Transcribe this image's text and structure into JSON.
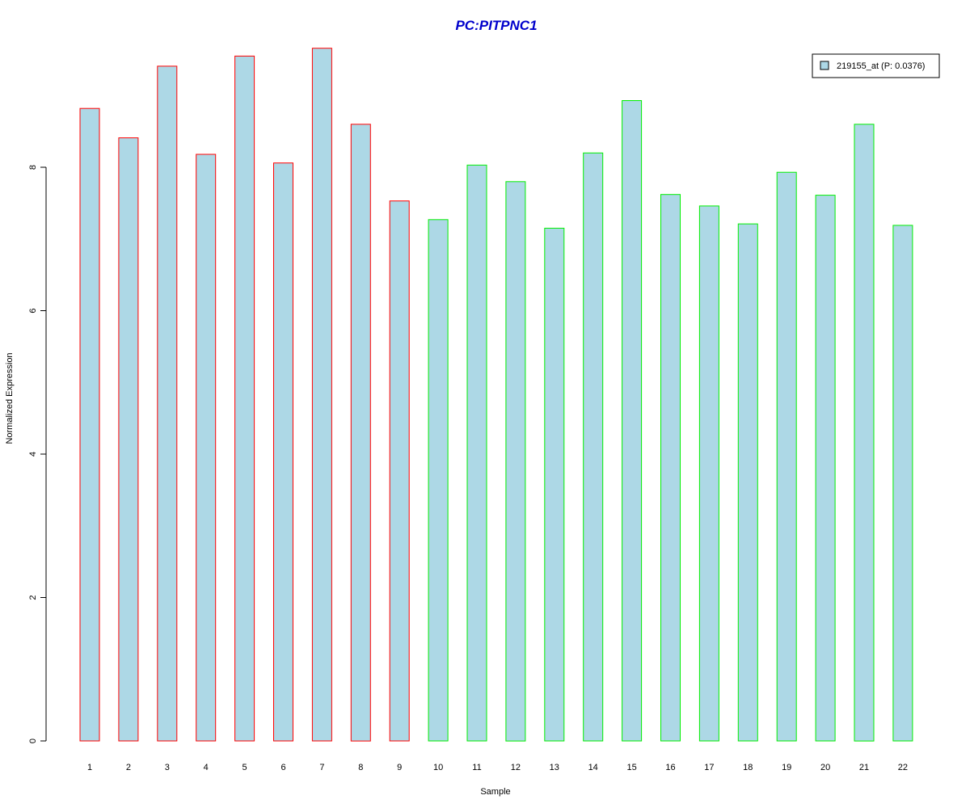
{
  "chart_data": {
    "type": "bar",
    "title": "PC:PITPNC1",
    "xlabel": "Sample",
    "ylabel": "Normalized Expression",
    "categories": [
      "1",
      "2",
      "3",
      "4",
      "5",
      "6",
      "7",
      "8",
      "9",
      "10",
      "11",
      "12",
      "13",
      "14",
      "15",
      "16",
      "17",
      "18",
      "19",
      "20",
      "21",
      "22"
    ],
    "series": [
      {
        "name": "219155_at (P: 0.0376)",
        "values": [
          8.82,
          8.41,
          9.41,
          8.18,
          9.55,
          8.06,
          9.66,
          8.6,
          7.53,
          7.27,
          8.03,
          7.8,
          7.15,
          8.2,
          8.93,
          7.62,
          7.46,
          7.21,
          7.93,
          7.61,
          8.6,
          7.19
        ]
      }
    ],
    "group_border_colors": [
      "#ff0000",
      "#ff0000",
      "#ff0000",
      "#ff0000",
      "#ff0000",
      "#ff0000",
      "#ff0000",
      "#ff0000",
      "#ff0000",
      "#00ee00",
      "#00ee00",
      "#00ee00",
      "#00ee00",
      "#00ee00",
      "#00ee00",
      "#00ee00",
      "#00ee00",
      "#00ee00",
      "#00ee00",
      "#00ee00",
      "#00ee00",
      "#00ee00"
    ],
    "yticks": [
      0,
      2,
      4,
      6,
      8
    ],
    "ylim": [
      0,
      9.8
    ],
    "grid": false,
    "legend_position": "top-right",
    "colors": {
      "bar_fill": "#add8e6",
      "title": "#0000cc"
    }
  }
}
